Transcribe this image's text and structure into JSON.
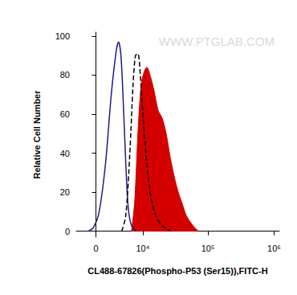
{
  "chart_data": {
    "type": "line",
    "x_label": "CL488-67826(Phospho-P53 (Ser15)),FITC-H",
    "y_label": "Relative Cell Number",
    "annotations": [
      "WWW.PTGLAB.COM"
    ],
    "xlim": [
      -3000,
      1200000
    ],
    "xticks": [
      {
        "value": 0,
        "label": "0"
      },
      {
        "value": 10000,
        "label": "10⁴"
      },
      {
        "value": 100000,
        "label": "10⁵"
      },
      {
        "value": 1000000,
        "label": "10⁶"
      }
    ],
    "ylim": [
      -3,
      102
    ],
    "yticks": [
      0,
      20,
      40,
      60,
      80,
      100
    ],
    "grid": false,
    "series": [
      {
        "color": "#1c1c8c",
        "line_style": "solid",
        "x": [
          -1158,
          -343,
          458,
          1394,
          2276,
          3098,
          3537,
          4004,
          4500,
          5024,
          5597,
          6419,
          7764
        ],
        "values": [
          0,
          2,
          10,
          35,
          70,
          92,
          97,
          90,
          65,
          35,
          12,
          3,
          0
        ]
      },
      {
        "color": "#000000",
        "line_style": "dashed",
        "x": [
          4167,
          5024,
          5990,
          6843,
          7533,
          8289,
          9094,
          10271,
          11585,
          13425,
          16000,
          20124,
          26777
        ],
        "values": [
          0,
          8,
          40,
          75,
          90,
          91,
          80,
          55,
          35,
          18,
          8,
          3,
          0
        ]
      },
      {
        "color": "#d40000",
        "line_style": "solid",
        "type": "area",
        "x": [
          6419,
          7297,
          8289,
          9378,
          10584,
          11585,
          13038,
          15082,
          17443,
          20124,
          23238,
          26777,
          30882,
          35557,
          40975,
          47154,
          59105,
          71910
        ],
        "values": [
          0,
          15,
          50,
          75,
          82,
          84,
          80,
          72,
          62,
          58,
          50,
          38,
          28,
          20,
          14,
          8,
          3,
          0
        ]
      }
    ]
  }
}
